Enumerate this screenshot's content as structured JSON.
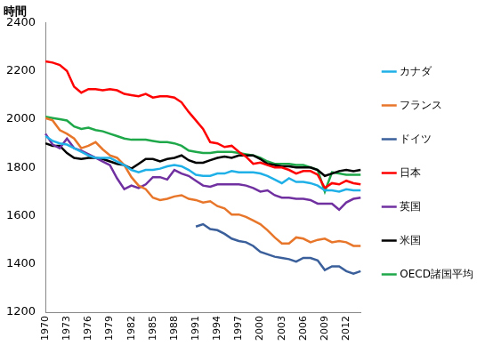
{
  "chart_data": {
    "type": "line",
    "ylabel": "時間",
    "categories": [
      "1970",
      null,
      null,
      "1973",
      null,
      null,
      "1976",
      null,
      null,
      "1979",
      null,
      null,
      "1982",
      null,
      null,
      "1985",
      null,
      null,
      "1988",
      null,
      null,
      "1991",
      null,
      null,
      "1994",
      null,
      null,
      "1997",
      null,
      null,
      "2000",
      null,
      null,
      "2003",
      null,
      null,
      "2006",
      null,
      null,
      "2009",
      null,
      null,
      "2012",
      null,
      null
    ],
    "ylim": [
      1200,
      2400
    ],
    "yticks": [
      1200,
      1400,
      1600,
      1800,
      2000,
      2200,
      2400
    ],
    "grid": false,
    "legend": "right",
    "series": [
      {
        "name": "カナダ",
        "color": "#1fb0e8",
        "values": [
          1930,
          1910,
          1900,
          1895,
          1880,
          1865,
          1850,
          1840,
          1840,
          1840,
          1825,
          1810,
          1790,
          1780,
          1790,
          1790,
          1795,
          1805,
          1810,
          1805,
          1790,
          1770,
          1765,
          1765,
          1775,
          1775,
          1785,
          1780,
          1780,
          1780,
          1775,
          1765,
          1750,
          1735,
          1755,
          1740,
          1740,
          1735,
          1725,
          1705,
          1705,
          1700,
          1710,
          1705,
          1705
        ]
      },
      {
        "name": "フランス",
        "color": "#e8762a",
        "values": [
          2005,
          1995,
          1955,
          1940,
          1920,
          1880,
          1890,
          1905,
          1875,
          1850,
          1840,
          1810,
          1760,
          1725,
          1710,
          1675,
          1665,
          1670,
          1680,
          1685,
          1670,
          1665,
          1655,
          1660,
          1640,
          1630,
          1605,
          1605,
          1595,
          1580,
          1565,
          1540,
          1510,
          1485,
          1485,
          1510,
          1505,
          1490,
          1500,
          1505,
          1490,
          1495,
          1490,
          1475,
          1475
        ]
      },
      {
        "name": "ドイツ",
        "color": "#3a5f9a",
        "values": [
          null,
          null,
          null,
          null,
          null,
          null,
          null,
          null,
          null,
          null,
          null,
          null,
          null,
          null,
          null,
          null,
          null,
          null,
          null,
          null,
          null,
          1555,
          1565,
          1545,
          1540,
          1525,
          1505,
          1495,
          1490,
          1475,
          1450,
          1440,
          1430,
          1425,
          1420,
          1410,
          1425,
          1425,
          1415,
          1375,
          1390,
          1390,
          1370,
          1360,
          1370
        ]
      },
      {
        "name": "日本",
        "color": "#ff0000",
        "values": [
          2240,
          2235,
          2225,
          2200,
          2135,
          2110,
          2125,
          2125,
          2120,
          2125,
          2120,
          2105,
          2100,
          2095,
          2105,
          2090,
          2095,
          2095,
          2090,
          2070,
          2030,
          1995,
          1960,
          1905,
          1900,
          1885,
          1890,
          1865,
          1845,
          1815,
          1820,
          1810,
          1800,
          1800,
          1790,
          1775,
          1785,
          1785,
          1770,
          1715,
          1735,
          1730,
          1745,
          1735,
          1730
        ]
      },
      {
        "name": "英国",
        "color": "#7030a0",
        "values": [
          1940,
          1895,
          1880,
          1920,
          1880,
          1870,
          1855,
          1840,
          1825,
          1810,
          1755,
          1710,
          1725,
          1715,
          1730,
          1760,
          1760,
          1750,
          1790,
          1775,
          1765,
          1745,
          1725,
          1720,
          1730,
          1730,
          1730,
          1730,
          1725,
          1715,
          1700,
          1705,
          1685,
          1675,
          1675,
          1670,
          1670,
          1665,
          1650,
          1650,
          1650,
          1625,
          1655,
          1670,
          1675
        ]
      },
      {
        "name": "米国",
        "color": "#000000",
        "values": [
          1900,
          1890,
          1890,
          1860,
          1840,
          1835,
          1840,
          1840,
          1835,
          1825,
          1815,
          1810,
          1795,
          1815,
          1835,
          1835,
          1825,
          1835,
          1840,
          1850,
          1830,
          1820,
          1820,
          1830,
          1840,
          1845,
          1840,
          1850,
          1850,
          1850,
          1835,
          1815,
          1810,
          1805,
          1805,
          1800,
          1800,
          1800,
          1790,
          1765,
          1775,
          1785,
          1790,
          1785,
          1790
        ]
      },
      {
        "name": "OECD諸国平均",
        "color": "#1ea84a",
        "values": [
          2010,
          2005,
          2000,
          1995,
          1970,
          1960,
          1965,
          1955,
          1950,
          1940,
          1930,
          1920,
          1915,
          1915,
          1915,
          1910,
          1905,
          1905,
          1900,
          1890,
          1870,
          1865,
          1860,
          1860,
          1865,
          1865,
          1865,
          1860,
          1855,
          1850,
          1840,
          1825,
          1815,
          1815,
          1815,
          1810,
          1810,
          1800,
          1790,
          1700,
          1780,
          1775,
          1770,
          1770,
          1770
        ]
      }
    ]
  }
}
